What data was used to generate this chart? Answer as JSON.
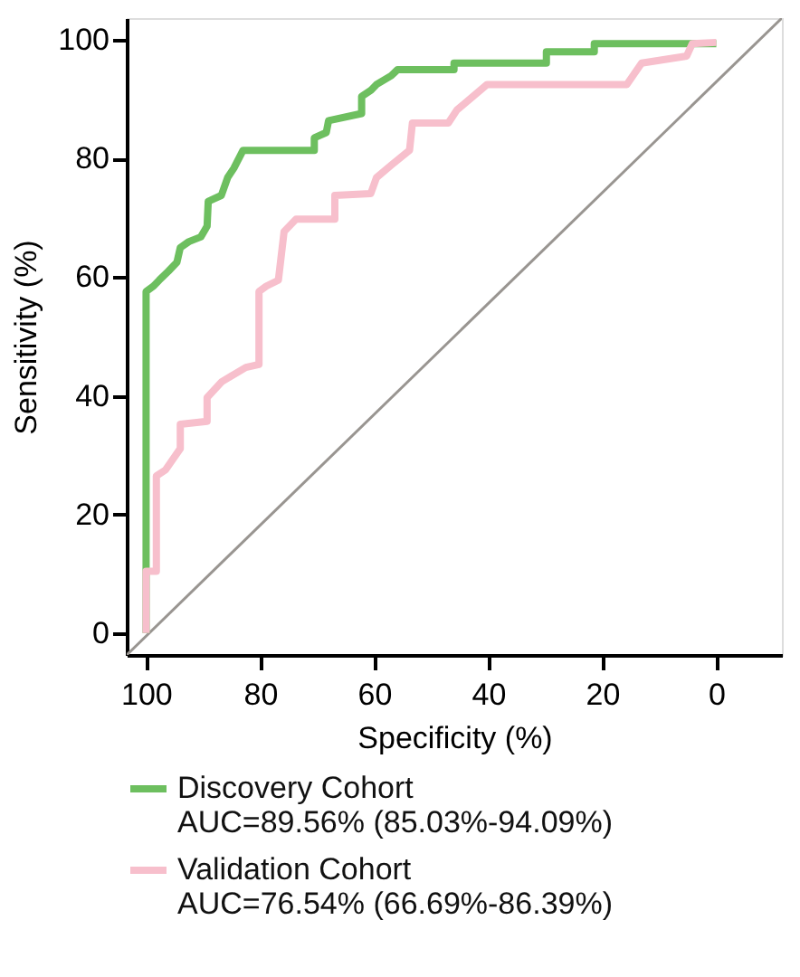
{
  "chart_data": {
    "type": "line",
    "xlabel": "Specificity (%)",
    "ylabel": "Sensitivity (%)",
    "xlim": [
      103.4,
      -11.5
    ],
    "ylim": [
      -3.7,
      103.7
    ],
    "xticks": [
      100,
      80,
      60,
      40,
      20,
      0
    ],
    "yticks": [
      0,
      20,
      40,
      60,
      80,
      100
    ],
    "grid": false,
    "legend": "bottom",
    "marker": "none",
    "line_style": "solid",
    "series": [
      {
        "name": "Discovery Cohort\nAUC=89.56% (85.03%-94.09%)",
        "color": "#6dbf5f",
        "x": [
          100,
          100,
          98.7,
          97.7,
          96.1,
          94.6,
          94,
          92.5,
          90.4,
          89.3,
          89.1,
          86.8,
          85.7,
          84.6,
          83,
          70.5,
          70.5,
          68.4,
          68,
          62.2,
          62.2,
          60.6,
          59.6,
          57,
          55.9,
          46,
          46,
          29.8,
          29.8,
          28.2,
          21.4,
          21.4,
          0
        ],
        "values": [
          0,
          57.6,
          58.5,
          59.5,
          61,
          62.5,
          65,
          66,
          66.8,
          68.6,
          72.8,
          73.8,
          76.8,
          78.4,
          81.4,
          81.4,
          83.5,
          84.4,
          86.4,
          87.6,
          90.5,
          91.5,
          92.5,
          94,
          95,
          95,
          96.1,
          96.1,
          98,
          98,
          98,
          99.4,
          99.4
        ]
      },
      {
        "name": "Validation Cohort\nAUC=76.54% (66.69%-86.39%)",
        "color": "#f7bfcc",
        "x": [
          100,
          100,
          98.2,
          98.2,
          96.6,
          94,
          94,
          89.3,
          89.3,
          86.7,
          82.5,
          80.2,
          80.2,
          78.9,
          76.8,
          75.8,
          73.7,
          66.9,
          66.9,
          60.6,
          59.6,
          57,
          53.8,
          53.3,
          47,
          45.5,
          40.2,
          15.7,
          13.1,
          5.2,
          4.2,
          0
        ],
        "values": [
          0,
          10.4,
          10.4,
          26.5,
          27.5,
          31.1,
          35.2,
          35.7,
          39.7,
          42.4,
          44.8,
          45.3,
          57.6,
          58.5,
          59.5,
          67.7,
          69.8,
          69.8,
          73.8,
          74.1,
          76.8,
          78.9,
          81.4,
          86,
          86,
          88.2,
          92.5,
          92.5,
          96.1,
          97.3,
          99.4,
          99.6
        ]
      },
      {
        "color": "#999591",
        "x": [
          103.4,
          -11.5
        ],
        "values": [
          -3.7,
          103.7
        ]
      }
    ]
  }
}
